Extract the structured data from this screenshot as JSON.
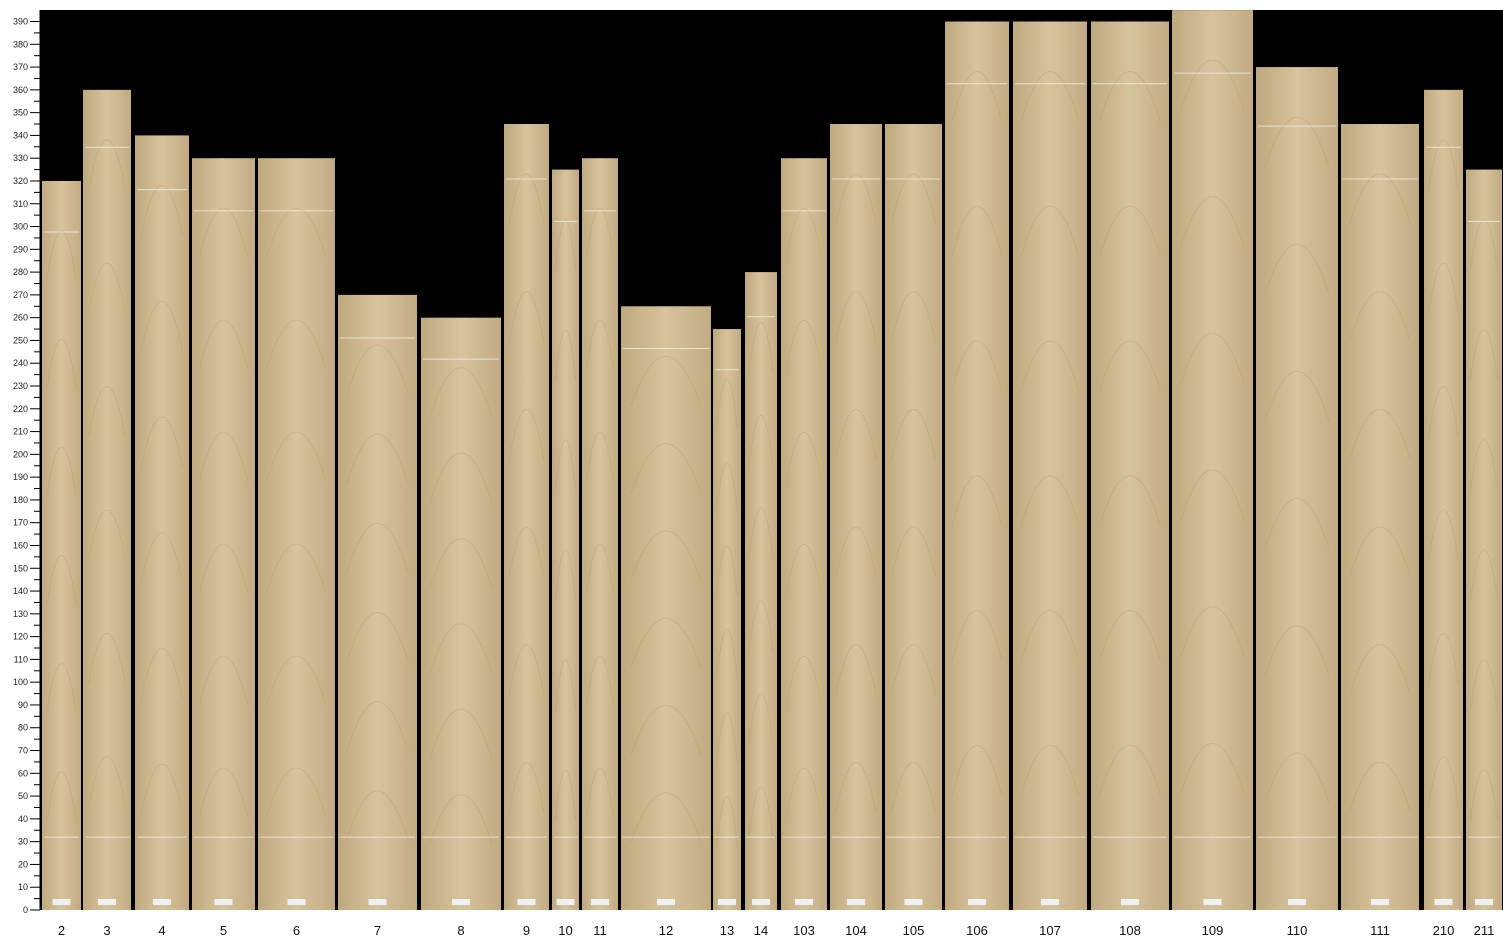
{
  "chart_data": {
    "type": "bar",
    "title": "",
    "xlabel": "",
    "ylabel": "",
    "ylim": [
      0,
      390
    ],
    "ytick_step": 10,
    "grid": false,
    "legend": "none",
    "categories": [
      "2",
      "3",
      "4",
      "5",
      "6",
      "7",
      "8",
      "9",
      "10",
      "11",
      "12",
      "13",
      "14",
      "103",
      "104",
      "105",
      "106",
      "107",
      "108",
      "109",
      "110",
      "111",
      "210",
      "211"
    ],
    "values": [
      320,
      360,
      340,
      330,
      330,
      270,
      260,
      345,
      325,
      330,
      265,
      255,
      280,
      330,
      345,
      345,
      390,
      390,
      390,
      395,
      370,
      345,
      360,
      325
    ],
    "colors": {
      "background": "#000000",
      "bar": "#cdb78f",
      "bar_light": "#dccaa3",
      "bar_dark": "#b9a27a",
      "axis": "#000000"
    }
  }
}
